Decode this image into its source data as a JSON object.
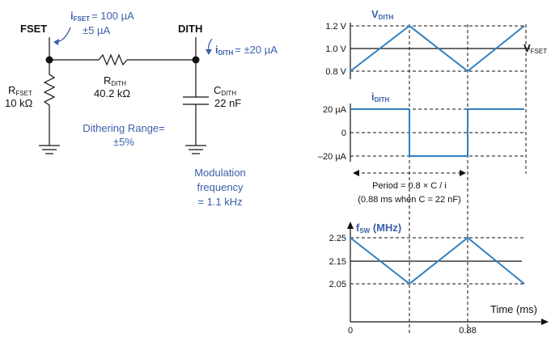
{
  "circuit": {
    "fset_label": "FSET",
    "dith_label": "DITH",
    "ifset_sym": "i",
    "ifset_sub": "FSET",
    "ifset_value": "= 100 µA",
    "ifset_tol": "±5 µA",
    "idith_sym": "i",
    "idith_sub": "DITH",
    "idith_value": "= ±20 µA",
    "rdith_sym": "R",
    "rdith_sub": "DITH",
    "rdith_value": "40.2 kΩ",
    "rfset_sym": "R",
    "rfset_sub": "FSET",
    "rfset_value": "10 kΩ",
    "cdith_sym": "C",
    "cdith_sub": "DITH",
    "cdith_value": "22 nF",
    "dither_line1": "Dithering Range=",
    "dither_line2": "±5%",
    "mod_line1": "Modulation",
    "mod_line2": "frequency",
    "mod_line3": "= 1.1 kHz",
    "color_text_blue": "#3a5fa8"
  },
  "vdith_plot": {
    "title_sym": "V",
    "title_sub": "DITH",
    "ticks": [
      "1.2 V",
      "1.0 V",
      "0.8 V"
    ],
    "vfset_sym": "V",
    "vfset_sub": "FSET",
    "wave_color": "#2f7fc1"
  },
  "idith_plot": {
    "title_sym": "i",
    "title_sub": "DITH",
    "ticks": [
      "20 µA",
      "0",
      "–20 µA"
    ]
  },
  "period": {
    "line1": "Period = 0.8 × C / i",
    "line2": "(0.88 ms when C = 22 nF)"
  },
  "fsw_plot": {
    "title_sym": "f",
    "title_sub": "SW",
    "title_unit": " (MHz)",
    "ticks": [
      "2.25",
      "2.15",
      "2.05"
    ],
    "xlabel": "Time (ms)",
    "x_ticks": [
      "0",
      "0.88"
    ]
  }
}
